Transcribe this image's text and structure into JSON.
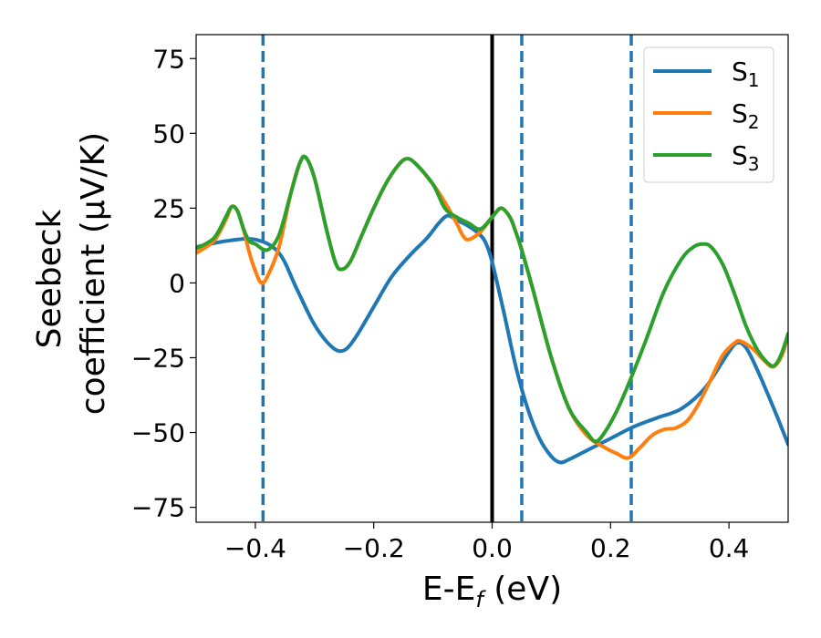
{
  "chart_data": {
    "type": "line",
    "xlabel": "E-E_f (eV)",
    "xlabel_parts": {
      "main": "E-E",
      "sub": "f",
      "tail": " (eV)"
    },
    "ylabel_line1": "Seebeck",
    "ylabel_line2": "coefficient  (μV/K)",
    "xlim": [
      -0.5,
      0.5
    ],
    "ylim": [
      -80,
      83
    ],
    "xticks": [
      -0.4,
      -0.2,
      0.0,
      0.2,
      0.4
    ],
    "xtick_labels": [
      "−0.4",
      "−0.2",
      "0.0",
      "0.2",
      "0.4"
    ],
    "yticks": [
      75,
      50,
      25,
      0,
      -25,
      -50,
      -75
    ],
    "ytick_labels": [
      "75",
      "50",
      "25",
      "0",
      "−25",
      "−50",
      "−75"
    ],
    "grid": false,
    "legend_position": "top-right",
    "series": [
      {
        "name": "S",
        "sub": "1",
        "color": "#1f77b4",
        "points": [
          [
            -0.5,
            12
          ],
          [
            -0.45,
            14
          ],
          [
            -0.4,
            14.5
          ],
          [
            -0.36,
            10
          ],
          [
            -0.33,
            -2
          ],
          [
            -0.3,
            -14
          ],
          [
            -0.27,
            -21.5
          ],
          [
            -0.25,
            -22.5
          ],
          [
            -0.23,
            -18
          ],
          [
            -0.2,
            -8
          ],
          [
            -0.17,
            2
          ],
          [
            -0.14,
            9
          ],
          [
            -0.11,
            15
          ],
          [
            -0.09,
            20
          ],
          [
            -0.075,
            22.5
          ],
          [
            -0.06,
            21
          ],
          [
            -0.04,
            19
          ],
          [
            -0.02,
            16
          ],
          [
            -0.01,
            13
          ],
          [
            0.0,
            7
          ],
          [
            0.02,
            -10
          ],
          [
            0.04,
            -28
          ],
          [
            0.06,
            -42
          ],
          [
            0.08,
            -52
          ],
          [
            0.1,
            -58
          ],
          [
            0.115,
            -60
          ],
          [
            0.13,
            -59
          ],
          [
            0.16,
            -56
          ],
          [
            0.2,
            -52
          ],
          [
            0.24,
            -48
          ],
          [
            0.28,
            -45
          ],
          [
            0.32,
            -42
          ],
          [
            0.36,
            -35
          ],
          [
            0.4,
            -23
          ],
          [
            0.415,
            -20
          ],
          [
            0.43,
            -22
          ],
          [
            0.45,
            -30
          ],
          [
            0.48,
            -44
          ],
          [
            0.5,
            -54
          ]
        ]
      },
      {
        "name": "S",
        "sub": "2",
        "color": "#ff7f0e",
        "points": [
          [
            -0.5,
            10
          ],
          [
            -0.47,
            14
          ],
          [
            -0.45,
            21
          ],
          [
            -0.44,
            25.5
          ],
          [
            -0.43,
            24
          ],
          [
            -0.42,
            18
          ],
          [
            -0.41,
            10
          ],
          [
            -0.4,
            4
          ],
          [
            -0.39,
            0
          ],
          [
            -0.38,
            2
          ],
          [
            -0.36,
            12
          ],
          [
            -0.34,
            30
          ],
          [
            -0.325,
            40
          ],
          [
            -0.315,
            42
          ],
          [
            -0.3,
            35
          ],
          [
            -0.28,
            18
          ],
          [
            -0.265,
            7
          ],
          [
            -0.255,
            4.5
          ],
          [
            -0.24,
            7
          ],
          [
            -0.22,
            16
          ],
          [
            -0.2,
            25
          ],
          [
            -0.18,
            33
          ],
          [
            -0.16,
            39
          ],
          [
            -0.145,
            41.5
          ],
          [
            -0.13,
            40
          ],
          [
            -0.1,
            33
          ],
          [
            -0.08,
            27
          ],
          [
            -0.06,
            20
          ],
          [
            -0.05,
            16
          ],
          [
            -0.04,
            14.5
          ],
          [
            -0.02,
            17
          ],
          [
            0.0,
            22
          ],
          [
            0.015,
            25
          ],
          [
            0.03,
            22
          ],
          [
            0.04,
            17
          ],
          [
            0.05,
            11
          ],
          [
            0.07,
            -3
          ],
          [
            0.1,
            -25
          ],
          [
            0.13,
            -42
          ],
          [
            0.16,
            -51
          ],
          [
            0.19,
            -55
          ],
          [
            0.21,
            -57
          ],
          [
            0.23,
            -58.5
          ],
          [
            0.25,
            -55
          ],
          [
            0.27,
            -51
          ],
          [
            0.29,
            -49
          ],
          [
            0.31,
            -48.5
          ],
          [
            0.33,
            -46
          ],
          [
            0.35,
            -40
          ],
          [
            0.37,
            -32
          ],
          [
            0.39,
            -24
          ],
          [
            0.41,
            -20
          ],
          [
            0.42,
            -19.5
          ],
          [
            0.44,
            -22
          ],
          [
            0.46,
            -26
          ],
          [
            0.475,
            -28
          ],
          [
            0.49,
            -24
          ],
          [
            0.5,
            -17
          ]
        ]
      },
      {
        "name": "S",
        "sub": "3",
        "color": "#2ca02c",
        "points": [
          [
            -0.5,
            11.5
          ],
          [
            -0.47,
            15
          ],
          [
            -0.45,
            22
          ],
          [
            -0.44,
            25.5
          ],
          [
            -0.43,
            24
          ],
          [
            -0.42,
            18
          ],
          [
            -0.41,
            14
          ],
          [
            -0.4,
            13
          ],
          [
            -0.38,
            11
          ],
          [
            -0.36,
            16
          ],
          [
            -0.34,
            30
          ],
          [
            -0.325,
            40
          ],
          [
            -0.315,
            42
          ],
          [
            -0.3,
            35
          ],
          [
            -0.28,
            18
          ],
          [
            -0.265,
            7
          ],
          [
            -0.255,
            4.5
          ],
          [
            -0.24,
            7
          ],
          [
            -0.22,
            16
          ],
          [
            -0.2,
            25
          ],
          [
            -0.18,
            33
          ],
          [
            -0.16,
            39
          ],
          [
            -0.145,
            41.5
          ],
          [
            -0.13,
            40
          ],
          [
            -0.1,
            33
          ],
          [
            -0.08,
            25
          ],
          [
            -0.06,
            22
          ],
          [
            -0.04,
            20
          ],
          [
            -0.02,
            18
          ],
          [
            0.0,
            22
          ],
          [
            0.015,
            25
          ],
          [
            0.03,
            22
          ],
          [
            0.04,
            17
          ],
          [
            0.05,
            11
          ],
          [
            0.07,
            -3
          ],
          [
            0.1,
            -25
          ],
          [
            0.13,
            -42
          ],
          [
            0.16,
            -50
          ],
          [
            0.175,
            -53
          ],
          [
            0.19,
            -50
          ],
          [
            0.21,
            -43
          ],
          [
            0.23,
            -34
          ],
          [
            0.26,
            -19
          ],
          [
            0.29,
            -3
          ],
          [
            0.32,
            8
          ],
          [
            0.34,
            12
          ],
          [
            0.355,
            13
          ],
          [
            0.37,
            12
          ],
          [
            0.39,
            6
          ],
          [
            0.41,
            -4
          ],
          [
            0.43,
            -15
          ],
          [
            0.45,
            -23
          ],
          [
            0.47,
            -27.5
          ],
          [
            0.48,
            -27
          ],
          [
            0.49,
            -23
          ],
          [
            0.5,
            -17
          ]
        ]
      }
    ],
    "vlines": [
      {
        "x": -0.387,
        "color": "#1f77b4",
        "style": "dashed"
      },
      {
        "x": 0.0,
        "color": "#000000",
        "style": "solid"
      },
      {
        "x": 0.05,
        "color": "#1f77b4",
        "style": "dashed"
      },
      {
        "x": 0.235,
        "color": "#1f77b4",
        "style": "dashed"
      }
    ]
  }
}
